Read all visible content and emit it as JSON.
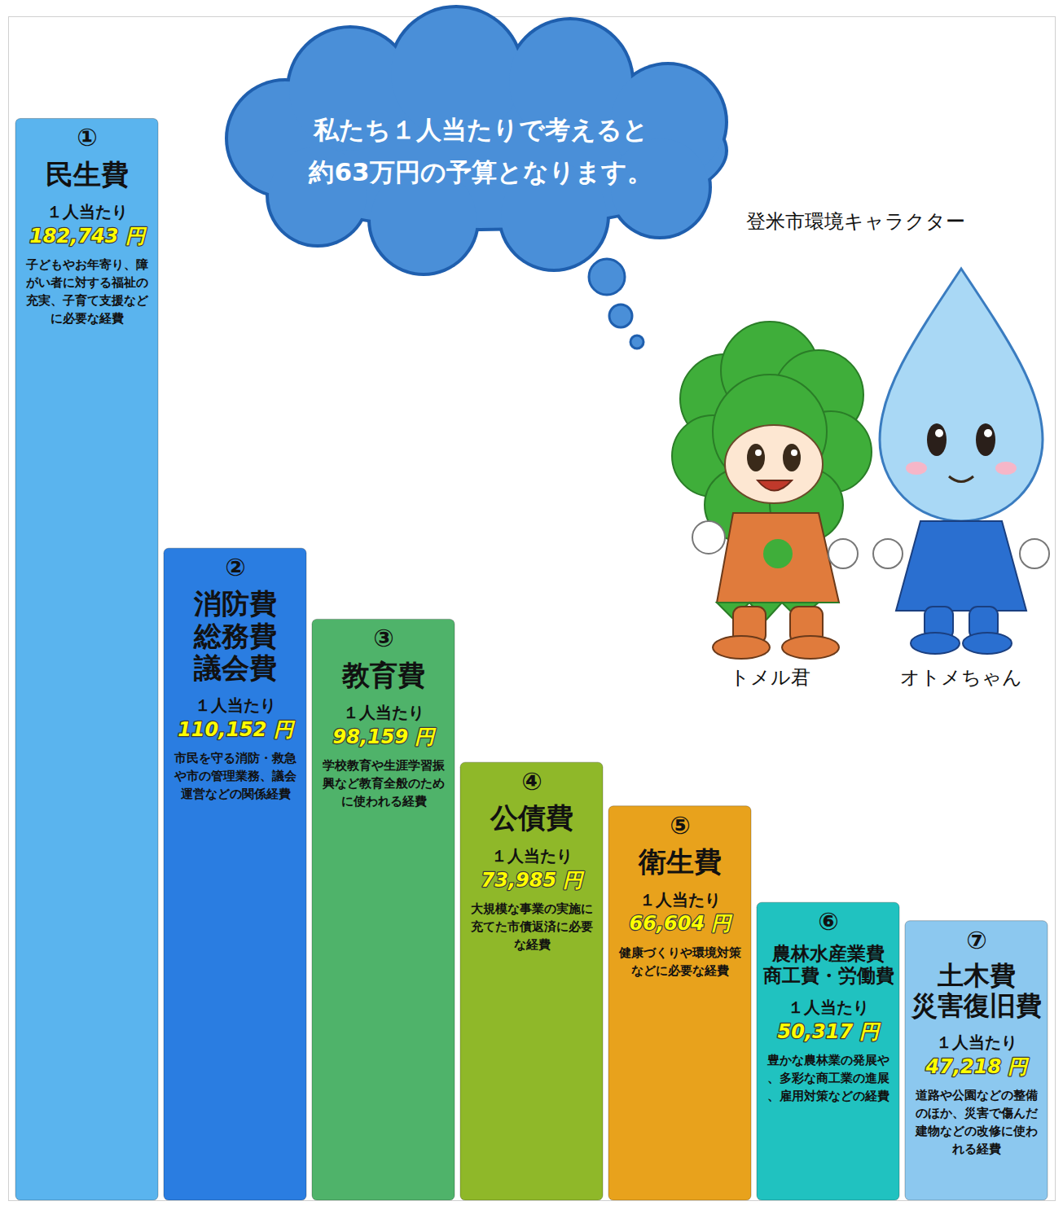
{
  "chart_data": {
    "type": "bar",
    "annotation_lines": [
      "私たち１人当たりで考えると",
      "約63万円の予算となります。"
    ],
    "category_numbers": [
      "①",
      "②",
      "③",
      "④",
      "⑤",
      "⑥",
      "⑦"
    ],
    "categories": [
      "民生費",
      "消防費\n総務費\n議会費",
      "教育費",
      "公債費",
      "衛生費",
      "農林水産業費\n商工費・労働費",
      "土木費\n災害復旧費"
    ],
    "per_person_label": "１人当たり",
    "values": [
      182743,
      110152,
      98159,
      73985,
      66604,
      50317,
      47218
    ],
    "value_labels": [
      "182,743 円",
      "110,152 円",
      "98,159 円",
      "73,985 円",
      "66,604 円",
      "50,317 円",
      "47,218 円"
    ],
    "descriptions": [
      "子どもやお年寄り、障がい者に対する福祉の充実、子育て支援などに必要な経費",
      "市民を守る消防・救急や市の管理業務、議会運営などの関係経費",
      "学校教育や生涯学習振興など教育全般のために使われる経費",
      "大規模な事業の実施に充てた市債返済に必要な経費",
      "健康づくりや環境対策などに必要な経費",
      "豊かな農林業の発展や、多彩な商工業の進展、雇用対策などの経費",
      "道路や公園などの整備のほか、災害で傷んだ建物などの改修に使われる経費"
    ],
    "colors": [
      "#5ab4ee",
      "#2a7de1",
      "#4fb36a",
      "#8fb829",
      "#e8a21c",
      "#20c2c0",
      "#8cc8ef"
    ],
    "ylim": [
      0,
      200000
    ],
    "yticks": [],
    "tick_labels": false,
    "grid": false,
    "data_labels": true
  },
  "illustration": {
    "caption": "登米市環境キャラクター",
    "names": [
      "トメル君",
      "オトメちゃん"
    ]
  }
}
